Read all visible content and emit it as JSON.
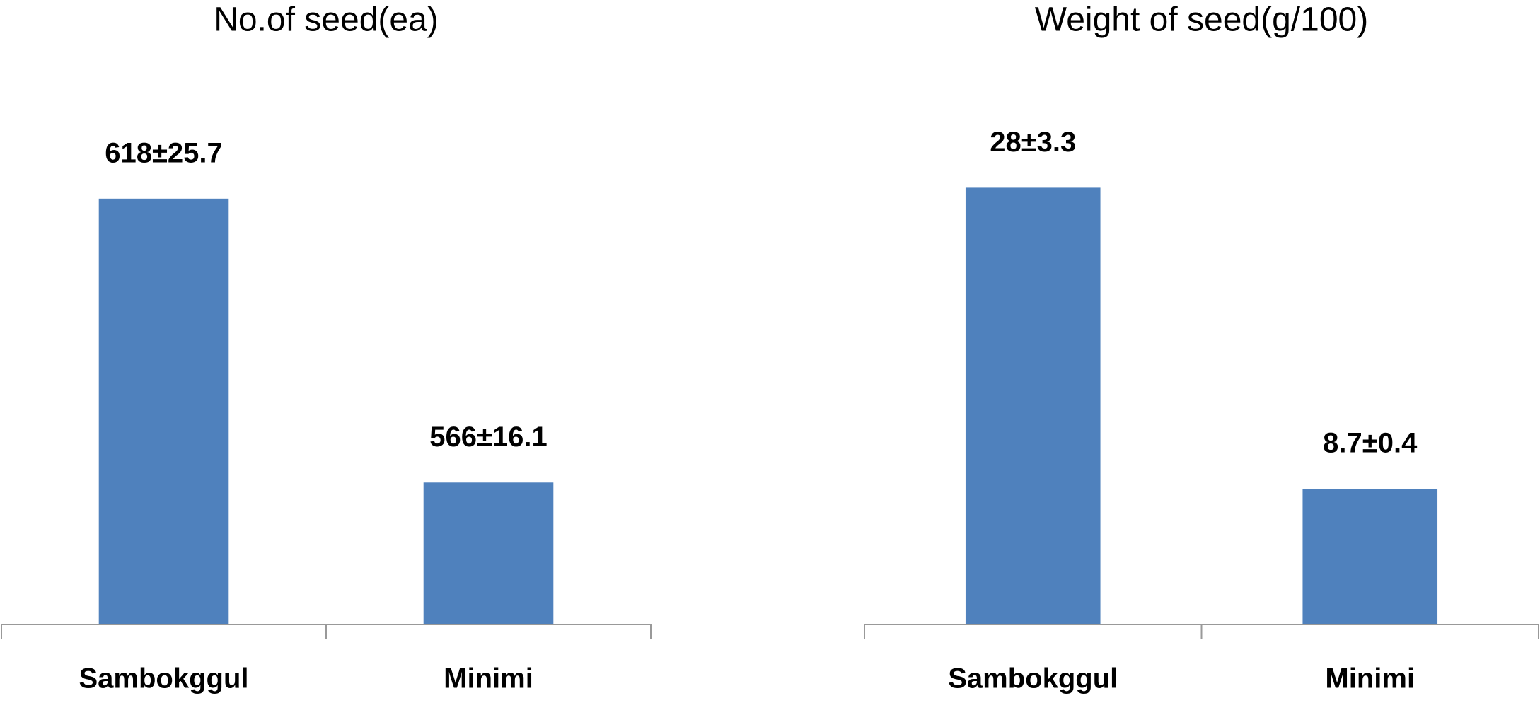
{
  "chart_data": [
    {
      "type": "bar",
      "title": "No.of seed(ea)",
      "categories": [
        "Sambokggul",
        "Minimi"
      ],
      "values": [
        618,
        566
      ],
      "value_labels": [
        "618±25.7",
        "566±16.1"
      ],
      "color": "#4f81bd",
      "ylim": [
        540,
        640
      ]
    },
    {
      "type": "bar",
      "title": "Weight of seed(g/100)",
      "categories": [
        "Sambokggul",
        "Minimi"
      ],
      "values": [
        28,
        8.7
      ],
      "value_labels": [
        "28±3.3",
        "8.7±0.4"
      ],
      "color": "#4f81bd",
      "ylim": [
        0,
        35
      ]
    }
  ]
}
